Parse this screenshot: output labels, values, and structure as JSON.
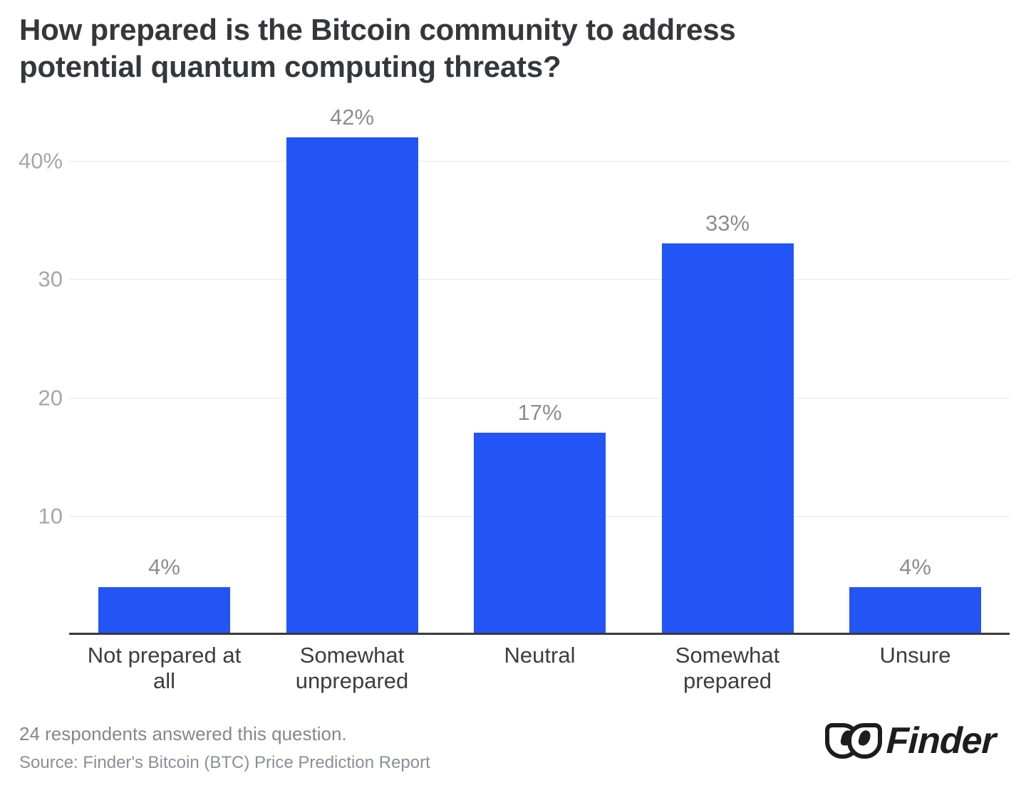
{
  "page": {
    "background": "#ffffff"
  },
  "title_lines": [
    "How prepared is the Bitcoin community to address",
    "potential quantum computing threats?"
  ],
  "chart_data": {
    "type": "bar",
    "title": "How prepared is the Bitcoin community to address potential quantum computing threats?",
    "categories": [
      "Not prepared at all",
      "Somewhat unprepared",
      "Neutral",
      "Somewhat prepared",
      "Unsure"
    ],
    "values": [
      4,
      42,
      17,
      33,
      4
    ],
    "value_labels": [
      "4%",
      "42%",
      "17%",
      "33%",
      "4%"
    ],
    "yticks": [
      {
        "value": 40,
        "label": "40%"
      },
      {
        "value": 30,
        "label": "30"
      },
      {
        "value": 20,
        "label": "20"
      },
      {
        "value": 10,
        "label": "10"
      }
    ],
    "ylim": [
      0,
      45
    ],
    "xlabel": "",
    "ylabel": "",
    "grid": "horizontal-only",
    "legend": "none",
    "bar_color": "#2254f6",
    "gridline_color": "#e8e8e8",
    "axis_line_color": "#3a3a3a",
    "ytick_color": "#a6a6a6",
    "value_label_color": "#8d8d8d",
    "category_label_color": "#3d3d3e"
  },
  "footer": {
    "respondents_note": "24 respondents answered this question.",
    "source_note": "Source: Finder's Bitcoin (BTC) Price Prediction Report"
  },
  "logo": {
    "brand": "Finder"
  }
}
